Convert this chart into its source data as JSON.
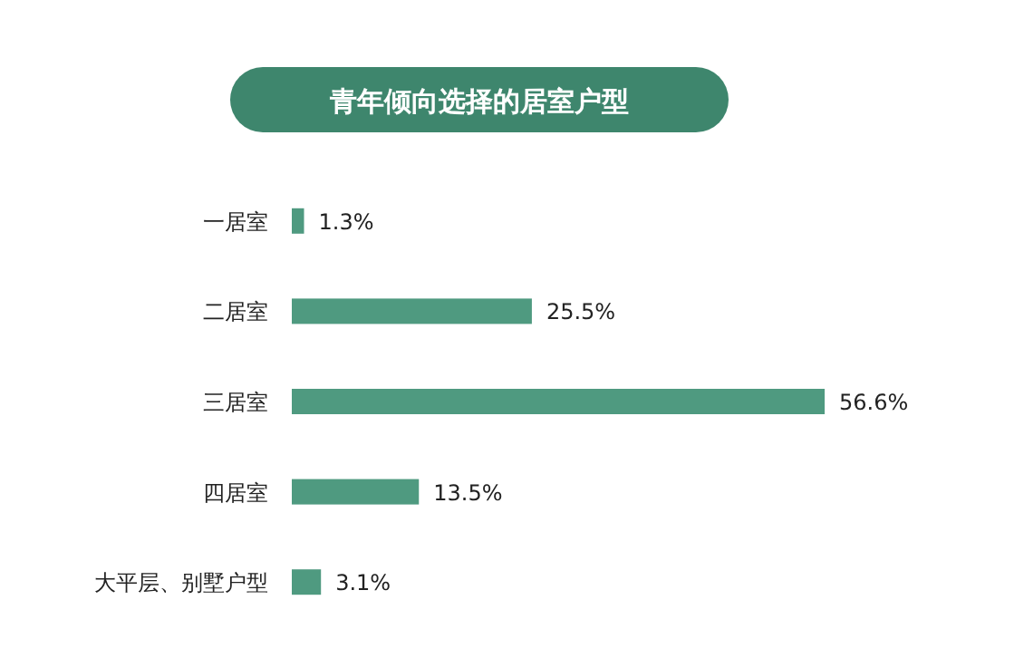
{
  "chart_data": {
    "type": "bar",
    "orientation": "horizontal",
    "title": "青年倾向选择的居室户型",
    "categories": [
      "一居室",
      "二居室",
      "三居室",
      "四居室",
      "大平层、别墅户型"
    ],
    "values": [
      1.3,
      25.5,
      56.6,
      13.5,
      3.1
    ],
    "value_labels": [
      "1.3%",
      "25.5%",
      "56.6%",
      "13.5%",
      "3.1%"
    ],
    "color": "#4f9a80"
  }
}
